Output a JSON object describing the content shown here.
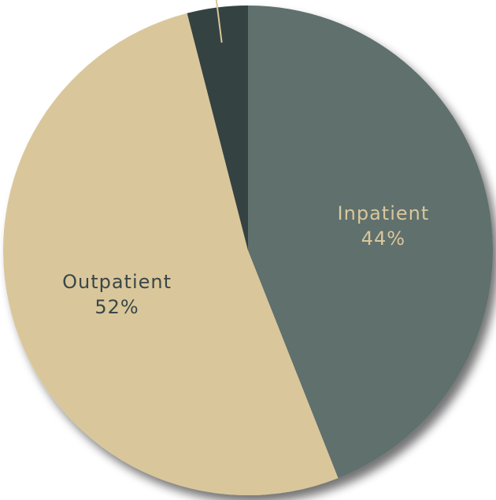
{
  "chart_data": {
    "type": "pie",
    "title": "",
    "start_angle_deg": 0,
    "direction": "clockwise",
    "slices": [
      {
        "label": "Inpatient",
        "value": 44,
        "display": "44%",
        "color": "#5e6f6d",
        "label_color": "#d9c79b"
      },
      {
        "label": "Outpatient",
        "value": 52,
        "display": "52%",
        "color": "#d9c79b",
        "label_color": "#3a4646"
      },
      {
        "label": "",
        "value": 4,
        "display": "",
        "color": "#354243",
        "label_color": "#d9c79b"
      }
    ],
    "leader_line_color": "#d9c79b",
    "shadow": true
  }
}
